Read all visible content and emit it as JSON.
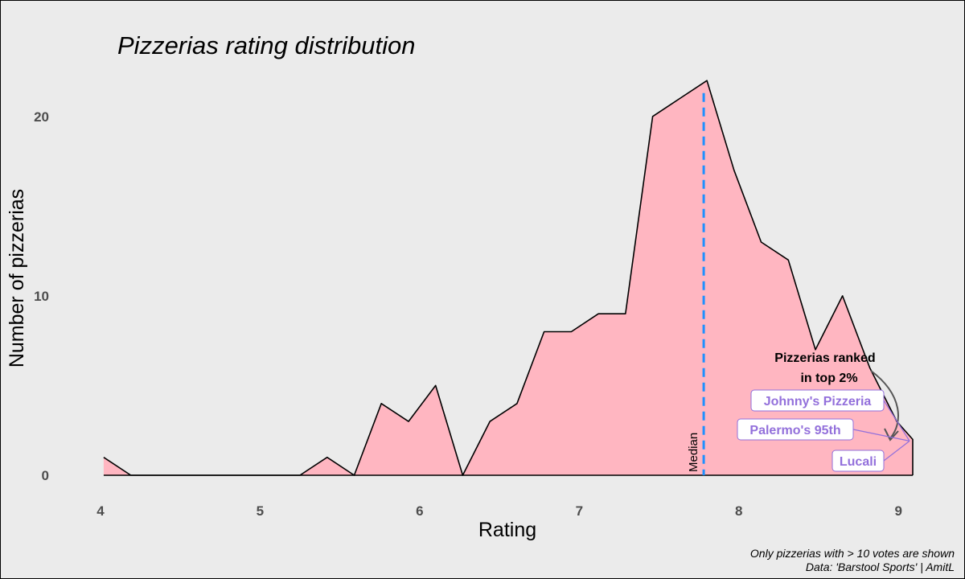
{
  "chart_data": {
    "type": "area",
    "title": "Pizzerias rating distribution",
    "xlabel": "Rating",
    "ylabel": "Number of pizzerias",
    "xlim": [
      3.98,
      9.12
    ],
    "ylim": [
      0,
      22.5
    ],
    "x_ticks": [
      "4",
      "5",
      "6",
      "7",
      "8",
      "9"
    ],
    "y_ticks": [
      "0",
      "10",
      "20"
    ],
    "grid": false,
    "fill_color": "#ffb6c1",
    "line_color": "#000000",
    "series": [
      {
        "x": [
          4.02,
          4.19,
          5.25,
          5.42,
          5.59,
          5.76,
          5.93,
          6.1,
          6.27,
          6.44,
          6.61,
          6.78,
          6.95,
          7.12,
          7.29,
          7.46,
          7.63,
          7.8,
          7.97,
          8.14,
          8.31,
          8.48,
          8.65,
          8.82,
          8.99,
          9.09
        ],
        "y": [
          1,
          0,
          0,
          1,
          0,
          4,
          3,
          5,
          0,
          3,
          4,
          8,
          8,
          9,
          9,
          20,
          21,
          22,
          17,
          13,
          12,
          7,
          10,
          6,
          3,
          2
        ]
      }
    ],
    "median": {
      "x": 7.78,
      "label": "Median",
      "color": "#1e90ff"
    },
    "annotation": {
      "line1": "Pizzerias ranked",
      "line2": "in top 2%"
    },
    "highlighted": [
      {
        "name": "Johnny's Pizzeria",
        "x": 9.09,
        "y": 2
      },
      {
        "name": "Palermo's 95th",
        "x": 9.09,
        "y": 2
      },
      {
        "name": "Lucali",
        "x": 9.09,
        "y": 2
      }
    ],
    "label_color": "#9370db",
    "caption": {
      "line1": "Only pizzerias with > 10 votes are shown",
      "line2": "Data: 'Barstool Sports' | AmitL"
    }
  }
}
